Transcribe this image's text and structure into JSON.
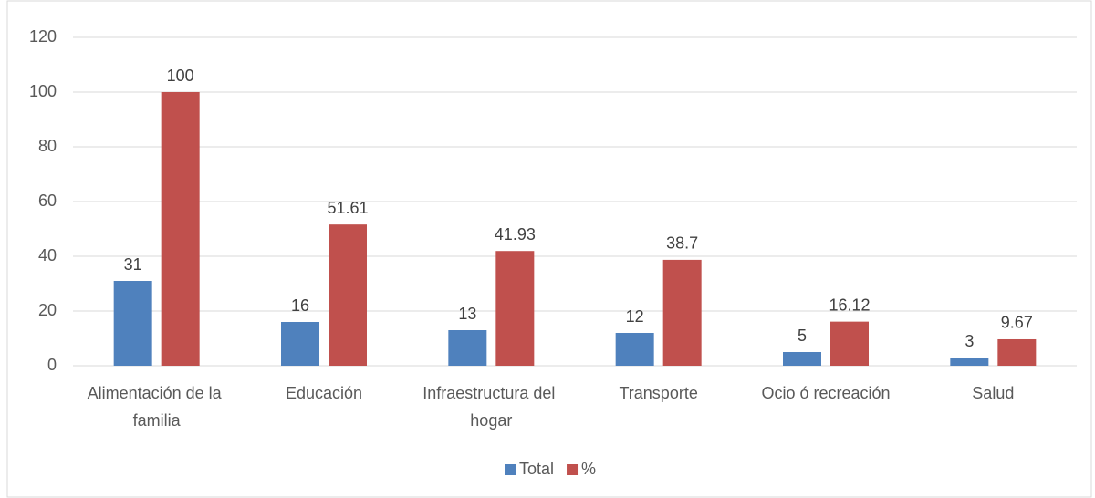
{
  "chart_data": {
    "type": "bar",
    "categories": [
      "Alimentación de la familia",
      "Educación",
      "Infraestructura del hogar",
      "Transporte",
      "Ocio ó recreación",
      "Salud"
    ],
    "series": [
      {
        "name": "Total",
        "color": "#4f81bd",
        "values": [
          31,
          16,
          13,
          12,
          5,
          3
        ]
      },
      {
        "name": "%",
        "color": "#c0504d",
        "values": [
          100,
          51.61,
          41.93,
          38.7,
          16.12,
          9.67
        ]
      }
    ],
    "ylim": [
      0,
      120
    ],
    "yticks": [
      0,
      20,
      40,
      60,
      80,
      100,
      120
    ],
    "grid": true,
    "legend": "bottom"
  }
}
